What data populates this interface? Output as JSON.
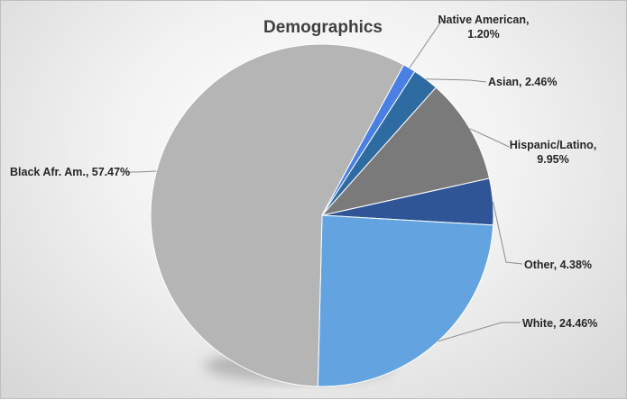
{
  "chart_data": {
    "type": "pie",
    "title": "Demographics",
    "slices": [
      {
        "label": "Other",
        "value": 4.38,
        "display": "Other, 4.38%",
        "color": "#2f5597"
      },
      {
        "label": "White",
        "value": 24.46,
        "display": "White, 24.46%",
        "color": "#62a3e0"
      },
      {
        "label": "Black Afr. Am.",
        "value": 57.47,
        "display": "Black Afr. Am., 57.47%",
        "color": "#b5b5b5"
      },
      {
        "label": "Native American",
        "value": 1.2,
        "display": [
          "Native American,",
          "1.20%"
        ],
        "color": "#4a7fe3"
      },
      {
        "label": "Asian",
        "value": 2.46,
        "display": "Asian, 2.46%",
        "color": "#2e6ba0"
      },
      {
        "label": "Hispanic/Latino",
        "value": 9.95,
        "display": [
          "Hispanic/Latino,",
          "9.95%"
        ],
        "color": "#7a7a7a"
      }
    ],
    "data_labels": "outside with leader lines",
    "legend": "none"
  }
}
